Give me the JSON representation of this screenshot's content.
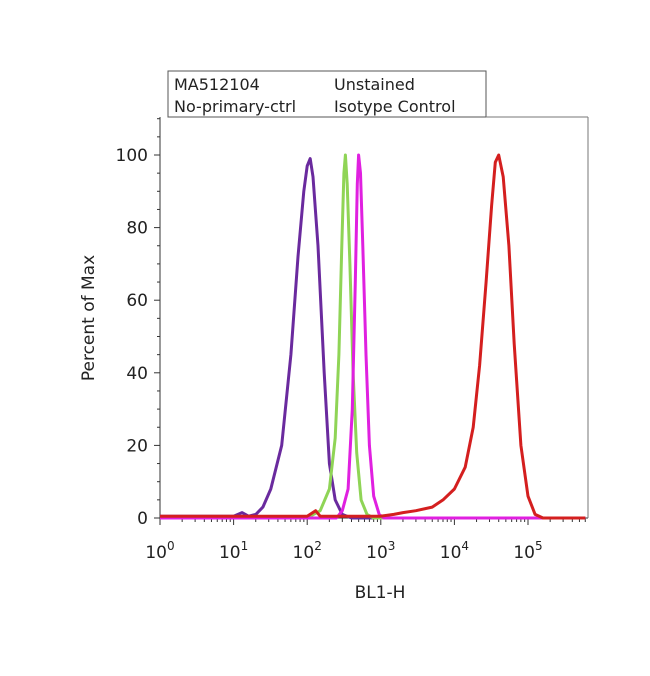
{
  "chart_data": {
    "type": "line",
    "xlabel": "BL1-H",
    "ylabel": "Percent of Max",
    "xscale": "log",
    "xlim": [
      1,
      600000
    ],
    "ylim": [
      0,
      110
    ],
    "grid": false,
    "legend_position": "top",
    "x_ticks": [
      {
        "value": 1,
        "base": "10",
        "exp": "0"
      },
      {
        "value": 10,
        "base": "10",
        "exp": "1"
      },
      {
        "value": 100,
        "base": "10",
        "exp": "2"
      },
      {
        "value": 1000,
        "base": "10",
        "exp": "3"
      },
      {
        "value": 10000,
        "base": "10",
        "exp": "4"
      },
      {
        "value": 100000,
        "base": "10",
        "exp": "5"
      }
    ],
    "y_ticks": [
      {
        "value": 0,
        "label": "0"
      },
      {
        "value": 20,
        "label": "20"
      },
      {
        "value": 40,
        "label": "40"
      },
      {
        "value": 60,
        "label": "60"
      },
      {
        "value": 80,
        "label": "80"
      },
      {
        "value": 100,
        "label": "100"
      }
    ],
    "series": [
      {
        "name": "Unstained",
        "color": "#6a2a9e",
        "points": [
          [
            1,
            0.5
          ],
          [
            10,
            0.5
          ],
          [
            13,
            1.5
          ],
          [
            16,
            0.5
          ],
          [
            20,
            1
          ],
          [
            25,
            3
          ],
          [
            32,
            8
          ],
          [
            45,
            20
          ],
          [
            60,
            45
          ],
          [
            75,
            72
          ],
          [
            90,
            90
          ],
          [
            100,
            97
          ],
          [
            110,
            99
          ],
          [
            120,
            94
          ],
          [
            140,
            75
          ],
          [
            170,
            40
          ],
          [
            200,
            15
          ],
          [
            240,
            5
          ],
          [
            300,
            1
          ],
          [
            400,
            0
          ],
          [
            1000,
            0
          ],
          [
            10000,
            0
          ],
          [
            100000,
            0
          ],
          [
            600000,
            0
          ]
        ]
      },
      {
        "name": "No-primary-ctrl",
        "color": "#8fd456",
        "points": [
          [
            1,
            0
          ],
          [
            100,
            0
          ],
          [
            150,
            2
          ],
          [
            200,
            8
          ],
          [
            240,
            22
          ],
          [
            270,
            45
          ],
          [
            295,
            75
          ],
          [
            315,
            95
          ],
          [
            330,
            100
          ],
          [
            350,
            92
          ],
          [
            380,
            70
          ],
          [
            420,
            40
          ],
          [
            470,
            18
          ],
          [
            540,
            5
          ],
          [
            650,
            1
          ],
          [
            800,
            0
          ],
          [
            600000,
            0
          ]
        ]
      },
      {
        "name": "Isotype Control",
        "color": "#e020e0",
        "points": [
          [
            1,
            0
          ],
          [
            250,
            0
          ],
          [
            300,
            2
          ],
          [
            360,
            8
          ],
          [
            410,
            30
          ],
          [
            450,
            65
          ],
          [
            480,
            92
          ],
          [
            500,
            100
          ],
          [
            530,
            95
          ],
          [
            570,
            75
          ],
          [
            630,
            45
          ],
          [
            700,
            20
          ],
          [
            800,
            6
          ],
          [
            950,
            1
          ],
          [
            1100,
            0
          ],
          [
            600000,
            0
          ]
        ]
      },
      {
        "name": "MA512104",
        "color": "#d41f1f",
        "points": [
          [
            1,
            0.5
          ],
          [
            100,
            0.5
          ],
          [
            130,
            2
          ],
          [
            150,
            0.5
          ],
          [
            200,
            0.5
          ],
          [
            500,
            0.5
          ],
          [
            1000,
            0.5
          ],
          [
            1500,
            1
          ],
          [
            2000,
            1.5
          ],
          [
            3000,
            2
          ],
          [
            5000,
            3
          ],
          [
            7000,
            5
          ],
          [
            10000,
            8
          ],
          [
            14000,
            14
          ],
          [
            18000,
            25
          ],
          [
            22000,
            42
          ],
          [
            27000,
            65
          ],
          [
            32000,
            86
          ],
          [
            36000,
            98
          ],
          [
            40000,
            100
          ],
          [
            46000,
            94
          ],
          [
            55000,
            75
          ],
          [
            65000,
            48
          ],
          [
            80000,
            20
          ],
          [
            100000,
            6
          ],
          [
            125000,
            1
          ],
          [
            160000,
            0
          ],
          [
            600000,
            0
          ]
        ]
      }
    ],
    "legend_entries": [
      {
        "label": "MA512104",
        "color": "#d41f1f"
      },
      {
        "label": "Unstained",
        "color": "#6a2a9e"
      },
      {
        "label": "No-primary-ctrl",
        "color": "#8fd456"
      },
      {
        "label": "Isotype Control",
        "color": "#e020e0"
      }
    ]
  }
}
